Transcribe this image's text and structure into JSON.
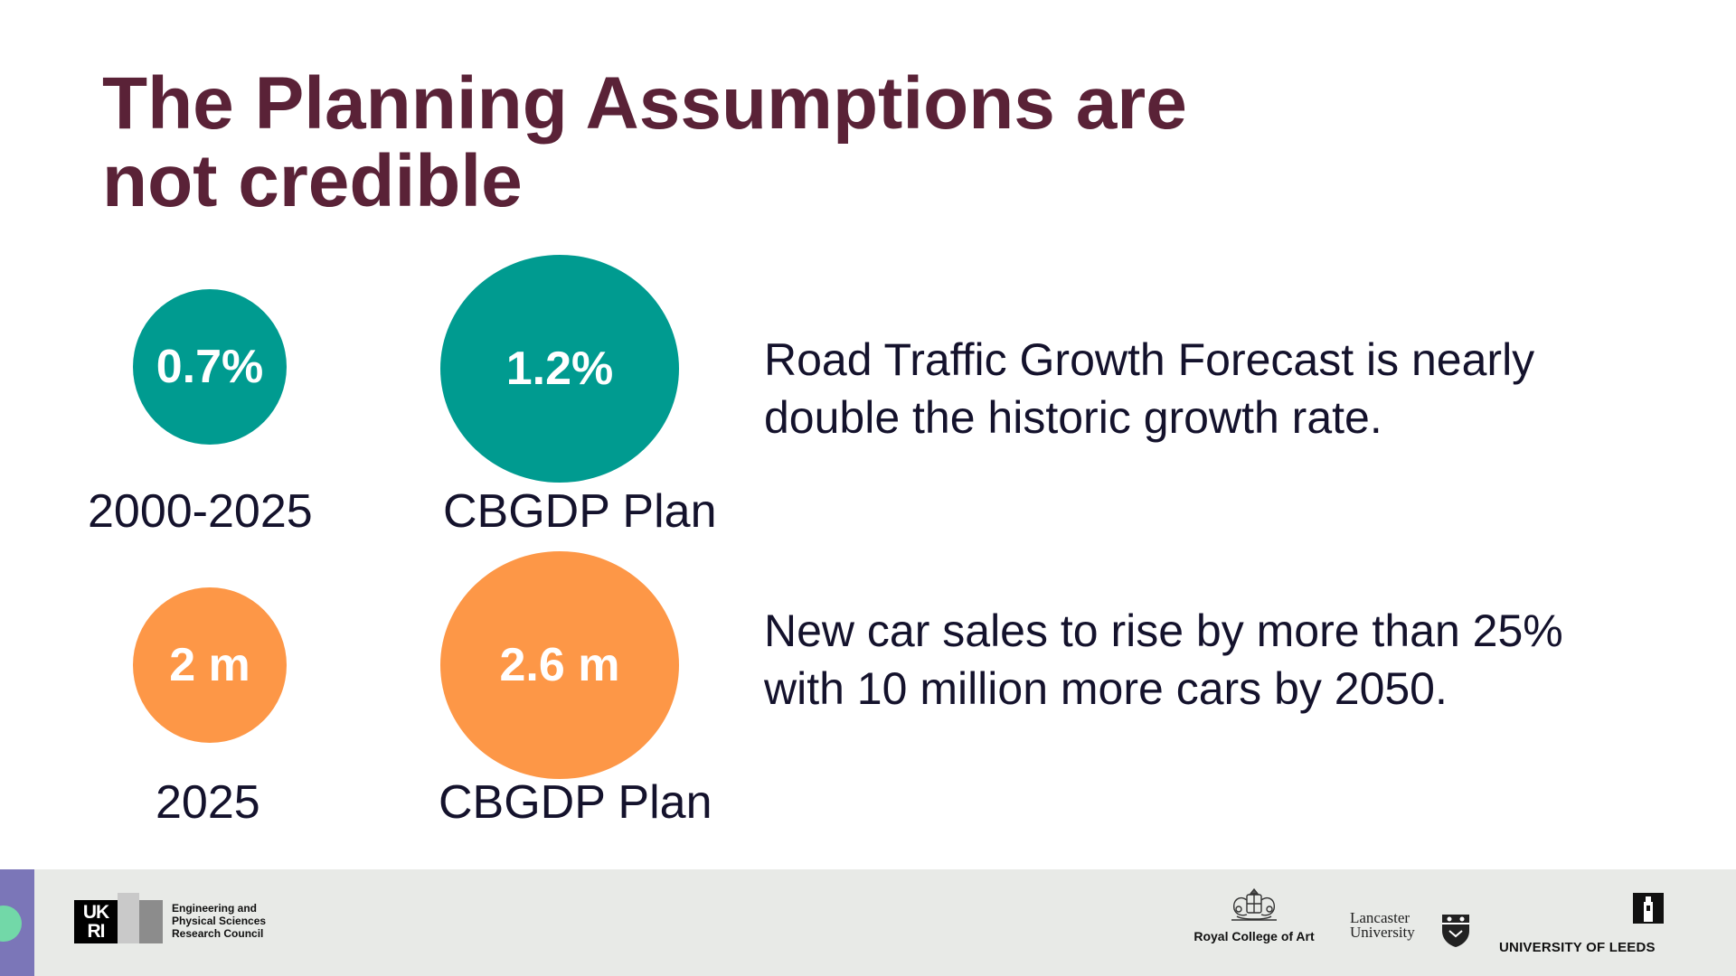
{
  "slide": {
    "title_line1": "The Planning Assumptions are",
    "title_line2": "not credible"
  },
  "traffic": {
    "historic_value": "0.7%",
    "historic_label": "2000-2025",
    "plan_value": "1.2%",
    "plan_label": "CBGDP Plan",
    "statement_line1": "Road Traffic Growth Forecast is nearly",
    "statement_line2": "double the historic growth rate.",
    "color": "#009b90"
  },
  "car_sales": {
    "current_value": "2 m",
    "current_label": "2025",
    "plan_value": "2.6 m",
    "plan_label": "CBGDP Plan",
    "statement_line1": "New car sales to rise by more than 25%",
    "statement_line2": "with 10 million more cars by 2050.",
    "color": "#fd9747"
  },
  "footer": {
    "ukri_mark_line1": "UK",
    "ukri_mark_line2": "RI",
    "epsrc_line1": "Engineering and",
    "epsrc_line2": "Physical Sciences",
    "epsrc_line3": "Research Council",
    "rca_label": "Royal College of Art",
    "lancaster_line1": "Lancaster",
    "lancaster_line2": "University",
    "leeds_label": "UNIVERSITY OF LEEDS",
    "background": "#e8eae7",
    "accent": "#7b76b8",
    "accent_dot": "#72d8a8"
  },
  "colors": {
    "title": "#5a2237",
    "body_text": "#14122c"
  }
}
